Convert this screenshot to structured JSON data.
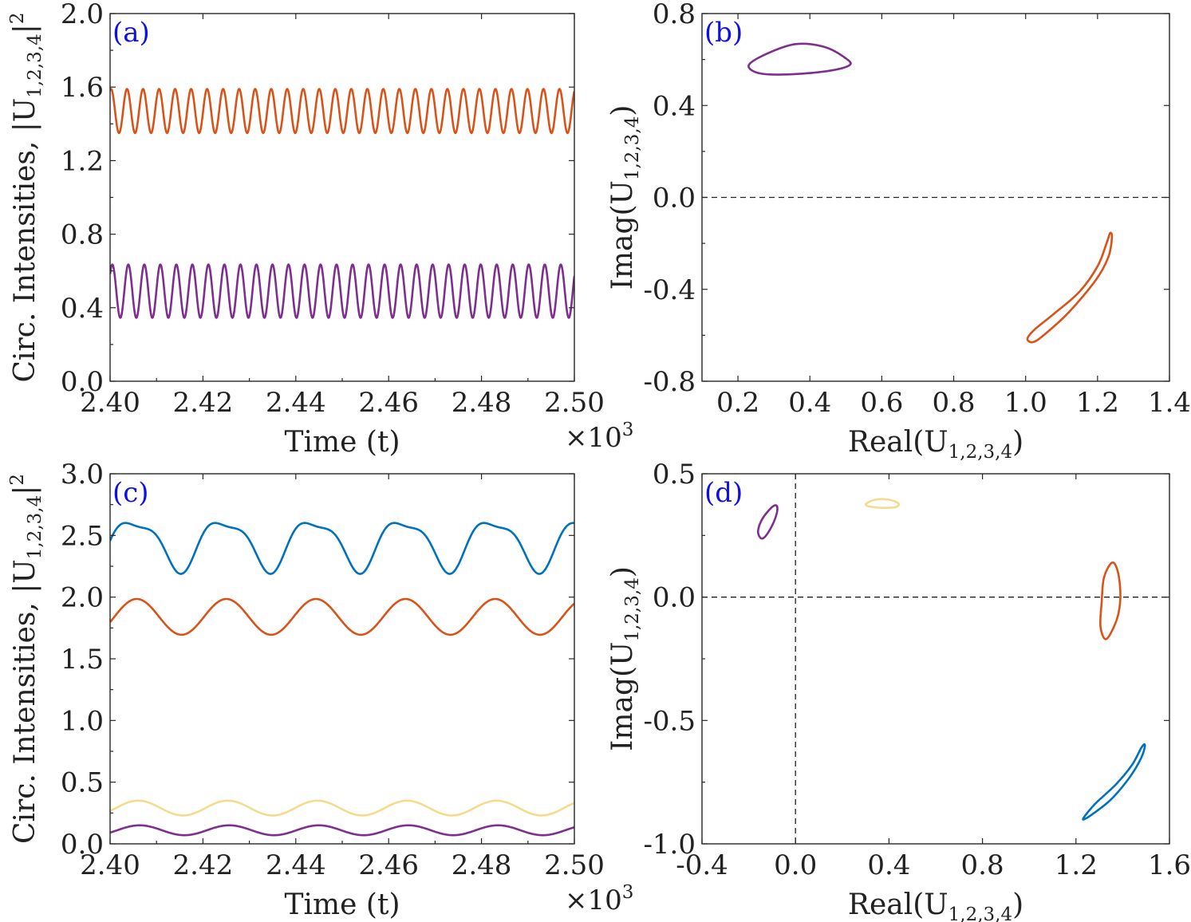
{
  "colors": {
    "blue": "#0072bd",
    "orange": "#d95319",
    "yellow": "#f5dc8c",
    "purple": "#7e2f8e",
    "tag": "#1010e0",
    "axis": "#262626"
  },
  "chart_data": [
    {
      "id": "a",
      "type": "line",
      "tag": "(a)",
      "xlabel": "Time (t)",
      "ylabel_main": "Circ. Intensities, |U",
      "ylabel_sub": "1,2,3,4",
      "ylabel_end": "|",
      "ylabel_sup": "2",
      "exponent_label": "×10",
      "exponent_power": "3",
      "xlim": [
        2.4,
        2.5
      ],
      "ylim": [
        0,
        2
      ],
      "xticks": [
        2.4,
        2.42,
        2.44,
        2.46,
        2.48,
        2.5
      ],
      "xtick_labels": [
        "2.40",
        "2.42",
        "2.44",
        "2.46",
        "2.48",
        "2.50"
      ],
      "yticks": [
        0,
        0.4,
        0.8,
        1.2,
        1.6,
        2.0
      ],
      "ytick_labels": [
        "0.0",
        "0.4",
        "0.8",
        "1.2",
        "1.6",
        "2.0"
      ],
      "series": [
        {
          "name": "orange",
          "color": "orange",
          "mean": 1.47,
          "amplitude": 0.12,
          "period": 0.00345,
          "phase": 1.2
        },
        {
          "name": "purple",
          "color": "purple",
          "mean": 0.49,
          "amplitude": 0.145,
          "period": 0.00345,
          "phase": 0.7
        }
      ]
    },
    {
      "id": "b",
      "type": "scatter",
      "tag": "(b)",
      "xlabel_main": "Real(U",
      "xlabel_sub": "1,2,3,4",
      "xlabel_end": ")",
      "ylabel_main": "Imag(U",
      "ylabel_sub": "1,2,3,4",
      "ylabel_end": ")",
      "xlim": [
        0.1,
        1.4
      ],
      "ylim": [
        -0.8,
        0.8
      ],
      "xticks": [
        0.2,
        0.4,
        0.6,
        0.8,
        1.0,
        1.2,
        1.4
      ],
      "xtick_labels": [
        "0.2",
        "0.4",
        "0.6",
        "0.8",
        "1.0",
        "1.2",
        "1.4"
      ],
      "yticks": [
        -0.8,
        -0.4,
        0.0,
        0.4,
        0.8
      ],
      "ytick_labels": [
        "-0.8",
        "-0.4",
        "0.0",
        "0.4",
        "0.8"
      ],
      "zero_lines": [
        "y"
      ],
      "curves": [
        {
          "name": "purple",
          "color": "purple",
          "points": [
            [
              0.23,
              0.575
            ],
            [
              0.28,
              0.625
            ],
            [
              0.36,
              0.667
            ],
            [
              0.44,
              0.655
            ],
            [
              0.5,
              0.605
            ],
            [
              0.51,
              0.575
            ],
            [
              0.45,
              0.55
            ],
            [
              0.34,
              0.535
            ],
            [
              0.26,
              0.54
            ],
            [
              0.23,
              0.575
            ]
          ]
        },
        {
          "name": "orange",
          "color": "orange",
          "points": [
            [
              1.005,
              -0.615
            ],
            [
              1.025,
              -0.575
            ],
            [
              1.08,
              -0.505
            ],
            [
              1.15,
              -0.41
            ],
            [
              1.2,
              -0.3
            ],
            [
              1.225,
              -0.2
            ],
            [
              1.235,
              -0.155
            ],
            [
              1.24,
              -0.175
            ],
            [
              1.23,
              -0.26
            ],
            [
              1.195,
              -0.36
            ],
            [
              1.12,
              -0.5
            ],
            [
              1.05,
              -0.6
            ],
            [
              1.02,
              -0.63
            ],
            [
              1.005,
              -0.615
            ]
          ]
        }
      ]
    },
    {
      "id": "c",
      "type": "line",
      "tag": "(c)",
      "xlabel": "Time (t)",
      "ylabel_main": "Circ. Intensities, |U",
      "ylabel_sub": "1,2,3,4",
      "ylabel_end": "|",
      "ylabel_sup": "2",
      "exponent_label": "×10",
      "exponent_power": "3",
      "xlim": [
        2.4,
        2.5
      ],
      "ylim": [
        0,
        3
      ],
      "xticks": [
        2.4,
        2.42,
        2.44,
        2.46,
        2.48,
        2.5
      ],
      "xtick_labels": [
        "2.40",
        "2.42",
        "2.44",
        "2.46",
        "2.48",
        "2.50"
      ],
      "yticks": [
        0,
        0.5,
        1.0,
        1.5,
        2.0,
        2.5,
        3.0
      ],
      "ytick_labels": [
        "0.0",
        "0.5",
        "1.0",
        "1.5",
        "2.0",
        "2.5",
        "3.0"
      ],
      "series": [
        {
          "name": "blue",
          "color": "blue",
          "mean": 2.44,
          "amplitude": 0.195,
          "period": 0.0193,
          "phase": -0.15,
          "harmonic": 0.3
        },
        {
          "name": "orange",
          "color": "orange",
          "mean": 1.84,
          "amplitude": 0.145,
          "period": 0.0193,
          "phase": -0.3
        },
        {
          "name": "yellow",
          "color": "yellow",
          "mean": 0.29,
          "amplitude": 0.06,
          "period": 0.0193,
          "phase": -0.4
        },
        {
          "name": "purple",
          "color": "purple",
          "mean": 0.11,
          "amplitude": 0.04,
          "period": 0.0193,
          "phase": -0.5
        }
      ]
    },
    {
      "id": "d",
      "type": "scatter",
      "tag": "(d)",
      "xlabel_main": "Real(U",
      "xlabel_sub": "1,2,3,4",
      "xlabel_end": ")",
      "ylabel_main": "Imag(U",
      "ylabel_sub": "1,2,3,4",
      "ylabel_end": ")",
      "xlim": [
        -0.4,
        1.6
      ],
      "ylim": [
        -1.0,
        0.5
      ],
      "xticks": [
        -0.4,
        0.0,
        0.4,
        0.8,
        1.2,
        1.6
      ],
      "xtick_labels": [
        "-0.4",
        "0.0",
        "0.4",
        "0.8",
        "1.2",
        "1.6"
      ],
      "yticks": [
        -1.0,
        -0.5,
        0.0,
        0.5
      ],
      "ytick_labels": [
        "-1.0",
        "-0.5",
        "0.0",
        "0.5"
      ],
      "zero_lines": [
        "x",
        "y"
      ],
      "curves": [
        {
          "name": "purple",
          "color": "purple",
          "points": [
            [
              -0.15,
              0.24
            ],
            [
              -0.16,
              0.27
            ],
            [
              -0.14,
              0.32
            ],
            [
              -0.1,
              0.365
            ],
            [
              -0.08,
              0.37
            ],
            [
              -0.08,
              0.34
            ],
            [
              -0.1,
              0.29
            ],
            [
              -0.13,
              0.245
            ],
            [
              -0.15,
              0.24
            ]
          ]
        },
        {
          "name": "yellow",
          "color": "yellow",
          "points": [
            [
              0.3,
              0.375
            ],
            [
              0.34,
              0.395
            ],
            [
              0.4,
              0.395
            ],
            [
              0.44,
              0.38
            ],
            [
              0.43,
              0.365
            ],
            [
              0.38,
              0.362
            ],
            [
              0.33,
              0.365
            ],
            [
              0.3,
              0.375
            ]
          ]
        },
        {
          "name": "orange",
          "color": "orange",
          "points": [
            [
              1.305,
              -0.12
            ],
            [
              1.31,
              -0.02
            ],
            [
              1.32,
              0.08
            ],
            [
              1.355,
              0.14
            ],
            [
              1.38,
              0.1
            ],
            [
              1.39,
              0.0
            ],
            [
              1.375,
              -0.09
            ],
            [
              1.33,
              -0.17
            ],
            [
              1.305,
              -0.12
            ]
          ]
        },
        {
          "name": "blue",
          "color": "blue",
          "points": [
            [
              1.23,
              -0.9
            ],
            [
              1.28,
              -0.84
            ],
            [
              1.37,
              -0.76
            ],
            [
              1.44,
              -0.68
            ],
            [
              1.48,
              -0.61
            ],
            [
              1.495,
              -0.6
            ],
            [
              1.48,
              -0.65
            ],
            [
              1.43,
              -0.73
            ],
            [
              1.35,
              -0.82
            ],
            [
              1.27,
              -0.88
            ],
            [
              1.23,
              -0.9
            ]
          ]
        }
      ]
    }
  ]
}
